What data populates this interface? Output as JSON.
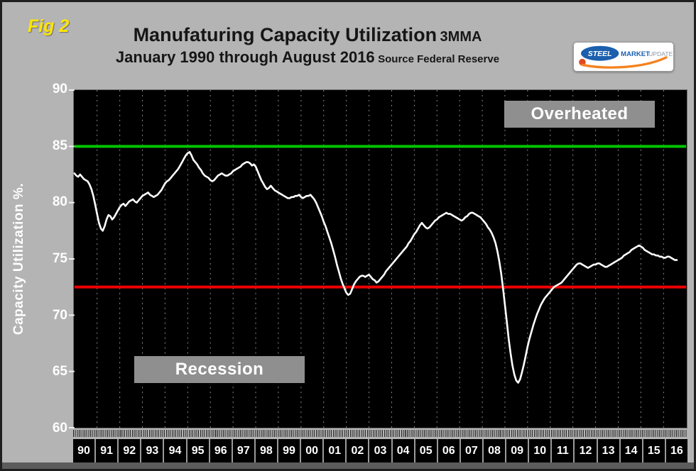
{
  "header": {
    "fig_label": "Fig 2",
    "title": "Manufaturing Capacity Utilization",
    "title_suffix": "3MMA",
    "subtitle": "January 1990 through August 2016",
    "subtitle_suffix": "Source Federal Reserve"
  },
  "logo": {
    "steel": "STEEL",
    "market": "MARKET",
    "update": "UPDATE"
  },
  "colors": {
    "page_background": "#b4b4b4",
    "plot_background": "#000000",
    "series_line": "#ffffff",
    "overheated_line": "#00c400",
    "recession_line": "#ee0000",
    "fig_label": "#ffe600",
    "annotation_box": "#8f8f8f"
  },
  "chart_data": {
    "type": "line",
    "title": "Manufaturing Capacity Utilization 3MMA",
    "subtitle": "January 1990 through August 2016",
    "source": "Source Federal Reserve",
    "ylabel": "Capacity Utilization %.",
    "ylim": [
      60,
      90
    ],
    "yticks": [
      60,
      65,
      70,
      75,
      80,
      85,
      90
    ],
    "x_range": [
      1990,
      2017
    ],
    "x_tick_labels": [
      "90",
      "91",
      "92",
      "93",
      "94",
      "95",
      "96",
      "97",
      "98",
      "99",
      "00",
      "01",
      "02",
      "03",
      "04",
      "05",
      "06",
      "07",
      "08",
      "09",
      "10",
      "11",
      "12",
      "13",
      "14",
      "15",
      "16"
    ],
    "grid": "vertical-dashed-yearly",
    "legend": "none",
    "reference_lines": [
      {
        "label": "Overheated",
        "value": 85,
        "color": "#00c400"
      },
      {
        "label": "Recession",
        "value": 72.5,
        "color": "#ee0000"
      }
    ],
    "series": [
      {
        "name": "Capacity Utilization 3MMA",
        "start": "1990-01",
        "end": "2016-08",
        "frequency": "monthly",
        "values": [
          82.6,
          82.4,
          82.3,
          82.5,
          82.3,
          82.1,
          82.0,
          81.9,
          81.6,
          81.2,
          80.6,
          79.8,
          79.0,
          78.2,
          77.7,
          77.5,
          77.9,
          78.5,
          78.9,
          78.8,
          78.5,
          78.7,
          79.0,
          79.3,
          79.6,
          79.8,
          79.9,
          79.7,
          79.9,
          80.1,
          80.2,
          80.3,
          80.1,
          80.0,
          80.2,
          80.4,
          80.6,
          80.7,
          80.8,
          80.9,
          80.7,
          80.6,
          80.5,
          80.6,
          80.7,
          80.9,
          81.1,
          81.4,
          81.7,
          81.9,
          82.0,
          82.2,
          82.4,
          82.6,
          82.8,
          83.0,
          83.3,
          83.6,
          83.9,
          84.2,
          84.4,
          84.5,
          84.2,
          83.8,
          83.6,
          83.4,
          83.1,
          82.9,
          82.6,
          82.4,
          82.3,
          82.2,
          82.0,
          81.9,
          82.0,
          82.2,
          82.4,
          82.5,
          82.6,
          82.5,
          82.4,
          82.4,
          82.5,
          82.6,
          82.8,
          82.9,
          83.0,
          83.1,
          83.2,
          83.4,
          83.5,
          83.6,
          83.6,
          83.5,
          83.3,
          83.4,
          83.2,
          82.8,
          82.4,
          82.0,
          81.7,
          81.4,
          81.2,
          81.3,
          81.5,
          81.3,
          81.1,
          81.0,
          80.9,
          80.8,
          80.7,
          80.6,
          80.5,
          80.4,
          80.4,
          80.5,
          80.5,
          80.6,
          80.6,
          80.7,
          80.5,
          80.4,
          80.5,
          80.6,
          80.6,
          80.7,
          80.5,
          80.3,
          80.0,
          79.6,
          79.2,
          78.8,
          78.3,
          77.9,
          77.4,
          76.9,
          76.4,
          75.8,
          75.2,
          74.5,
          73.9,
          73.3,
          72.8,
          72.4,
          72.0,
          71.8,
          71.9,
          72.3,
          72.7,
          73.0,
          73.2,
          73.4,
          73.5,
          73.5,
          73.4,
          73.5,
          73.6,
          73.4,
          73.2,
          73.1,
          72.9,
          73.0,
          73.2,
          73.4,
          73.6,
          73.9,
          74.1,
          74.3,
          74.5,
          74.7,
          74.9,
          75.1,
          75.3,
          75.5,
          75.7,
          75.9,
          76.1,
          76.4,
          76.6,
          76.9,
          77.2,
          77.4,
          77.7,
          78.0,
          78.2,
          78.0,
          77.8,
          77.7,
          77.8,
          78.0,
          78.2,
          78.4,
          78.5,
          78.7,
          78.8,
          78.9,
          79.0,
          79.1,
          79.0,
          79.0,
          78.9,
          78.8,
          78.7,
          78.6,
          78.5,
          78.4,
          78.5,
          78.7,
          78.8,
          79.0,
          79.1,
          79.1,
          79.0,
          78.9,
          78.8,
          78.7,
          78.5,
          78.3,
          78.1,
          77.8,
          77.6,
          77.3,
          76.9,
          76.4,
          75.7,
          74.8,
          73.7,
          72.4,
          70.9,
          69.4,
          67.9,
          66.6,
          65.5,
          64.7,
          64.2,
          64.0,
          64.3,
          64.9,
          65.6,
          66.4,
          67.2,
          67.9,
          68.5,
          69.1,
          69.6,
          70.1,
          70.5,
          70.9,
          71.2,
          71.5,
          71.7,
          71.9,
          72.1,
          72.3,
          72.5,
          72.6,
          72.7,
          72.8,
          72.9,
          73.1,
          73.3,
          73.5,
          73.7,
          73.9,
          74.1,
          74.3,
          74.5,
          74.6,
          74.6,
          74.5,
          74.4,
          74.3,
          74.2,
          74.3,
          74.4,
          74.5,
          74.5,
          74.6,
          74.6,
          74.5,
          74.4,
          74.3,
          74.3,
          74.4,
          74.5,
          74.6,
          74.7,
          74.8,
          74.9,
          75.0,
          75.1,
          75.3,
          75.4,
          75.5,
          75.6,
          75.8,
          75.9,
          76.0,
          76.1,
          76.2,
          76.1,
          76.0,
          75.8,
          75.7,
          75.6,
          75.5,
          75.4,
          75.4,
          75.3,
          75.3,
          75.2,
          75.2,
          75.1,
          75.1,
          75.2,
          75.2,
          75.1,
          75.0,
          74.9,
          74.9
        ]
      }
    ]
  }
}
